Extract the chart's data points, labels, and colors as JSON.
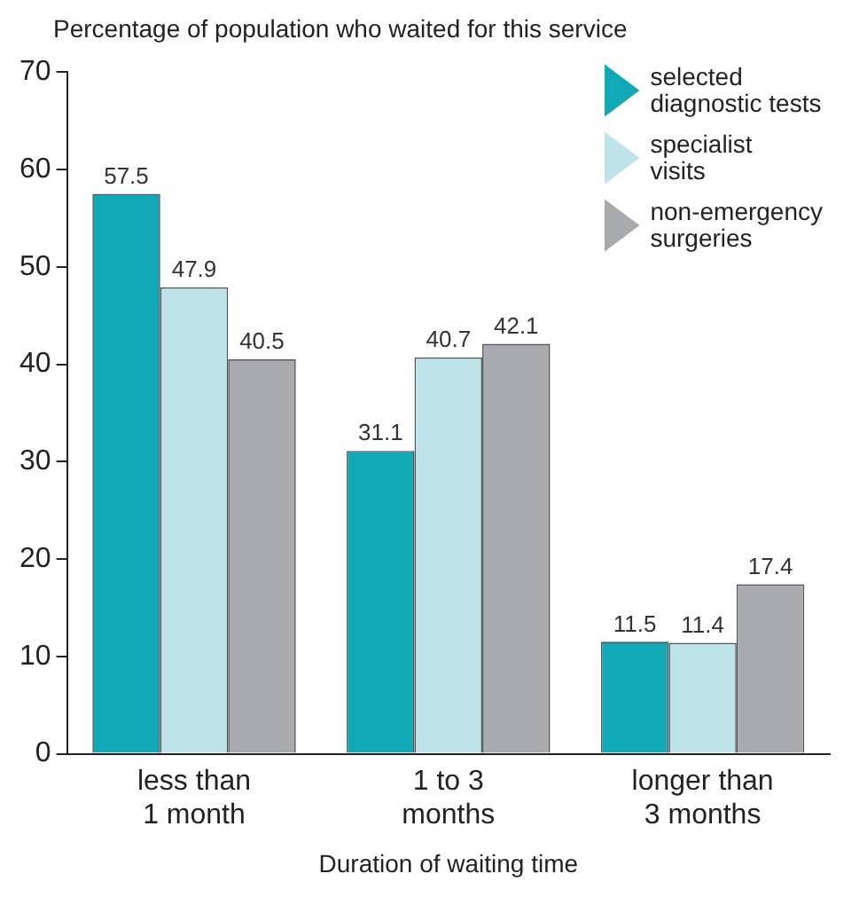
{
  "chart_data": {
    "type": "bar",
    "ylabel": "Percentage of population who waited for this service",
    "xlabel": "Duration of waiting time",
    "categories": [
      "less than 1 month",
      "1 to 3 months",
      "longer than 3 months"
    ],
    "series": [
      {
        "name": "selected diagnostic tests",
        "color": "#12a9b6",
        "values": [
          57.5,
          31.1,
          11.5
        ]
      },
      {
        "name": "specialist visits",
        "color": "#bee4ea",
        "values": [
          47.9,
          40.7,
          11.4
        ]
      },
      {
        "name": "non-emergency surgeries",
        "color": "#a9aaae",
        "values": [
          40.5,
          42.1,
          17.4
        ]
      }
    ],
    "ylim": [
      0,
      70
    ],
    "yticks": [
      0,
      10,
      20,
      30,
      40,
      50,
      60,
      70
    ],
    "grid": false,
    "legend": "top right",
    "data_labels": true
  }
}
